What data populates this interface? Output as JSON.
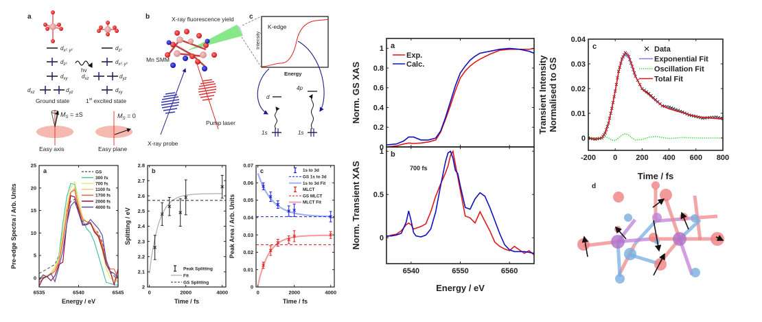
{
  "schematic": {
    "panel_a": {
      "label": "a",
      "ground_state_levels": [
        "d_{x2-y2}",
        "d_{z2}",
        "d_{xy}",
        "d_{xz}",
        "d_{yz}"
      ],
      "excited_state_levels": [
        "d_{z2}",
        "d_{x2-y2}",
        "d_{xz}",
        "d_{yz}",
        "d_{xy}"
      ],
      "gs_top": "d",
      "hv": "hv",
      "ground_state": "Ground state",
      "excited_prefix": "1",
      "excited_sup": "st",
      "excited_state": " excited state",
      "ms_axis": "M",
      "ms_axis_rest": " = ±S",
      "ms_plane": "M",
      "ms_plane_rest": " = 0",
      "ms_sub": "S",
      "easy_axis": "Easy axis",
      "easy_plane": "Easy plane",
      "sub_x2y2": "x²₋y²",
      "sub_z2": "z²",
      "sub_xy": "xy",
      "sub_xz": "xz",
      "sub_yz": "yz",
      "d": "d"
    },
    "panel_b": {
      "label": "b",
      "fluorescence": "X-ray fluorescence yield",
      "molecule": "Mn SMM",
      "pump": "Pump laser",
      "probe": "X-ray probe"
    },
    "panel_c": {
      "label": "c",
      "kedge": "K-edge",
      "ylabel": "Intensity",
      "xlabel": "Energy",
      "level_d": "d",
      "level_4p": "4p",
      "core1": "1s",
      "core2": "1s"
    }
  },
  "chart_data": [
    {
      "id": "pre-edge",
      "panel": "a",
      "type": "line",
      "xlabel": "Energy / eV",
      "ylabel": "Pre-edge Spectra / Arb. Units",
      "xlim": [
        6535,
        6545
      ],
      "ylim": [
        -2,
        25
      ],
      "xticks": [
        6535,
        6540,
        6545
      ],
      "yticks": [
        0,
        5,
        10,
        15,
        20,
        25
      ],
      "legend": "top-right",
      "x": [
        6535,
        6535.5,
        6536,
        6536.5,
        6537,
        6537.5,
        6538,
        6538.5,
        6539,
        6539.5,
        6540,
        6540.5,
        6541,
        6541.5,
        6542,
        6542.5,
        6543,
        6543.5,
        6544,
        6544.5,
        6545
      ],
      "series": [
        {
          "name": "GS",
          "color": "#666666",
          "dash": true,
          "values": [
            1,
            1.5,
            2,
            2.5,
            3,
            5,
            10,
            15,
            17,
            17.5,
            14.5,
            12.5,
            12,
            12,
            11,
            10,
            8,
            4,
            1.5,
            0.5,
            -1
          ]
        },
        {
          "name": "300 fs",
          "color": "#4dbf9a",
          "values": [
            -0.5,
            0.2,
            0.5,
            1,
            2,
            5,
            12,
            18,
            21,
            20.8,
            16,
            13,
            11,
            10,
            8,
            5,
            2,
            -1,
            -1.2,
            -1.5,
            -1.6
          ]
        },
        {
          "name": "700 fs",
          "color": "#d8ec7a",
          "values": [
            0,
            0.3,
            0.5,
            1.2,
            2.5,
            4.5,
            10,
            16,
            20,
            21.4,
            17.5,
            13.5,
            12.5,
            12.2,
            11,
            9,
            6,
            2,
            0,
            -0.5,
            -1
          ]
        },
        {
          "name": "1100 fs",
          "color": "#f7c96a",
          "values": [
            -0.3,
            0.5,
            0.6,
            1,
            2,
            4,
            9,
            15.5,
            19,
            20,
            16.5,
            13.5,
            12.5,
            12.3,
            11,
            9.5,
            7,
            3,
            1,
            0,
            -0.8
          ]
        },
        {
          "name": "1700 fs",
          "color": "#f06030",
          "values": [
            -1,
            -0.2,
            0.4,
            0.8,
            1.5,
            3.5,
            8,
            14,
            19,
            19.6,
            15.5,
            13,
            12.5,
            12.3,
            10.5,
            9.5,
            7.5,
            3.5,
            2,
            2,
            0
          ]
        },
        {
          "name": "2000 fs",
          "color": "#9b1040",
          "values": [
            -1.8,
            0,
            0.3,
            -0.6,
            0.5,
            3,
            3.5,
            12,
            18.3,
            18,
            15,
            12,
            11.8,
            12.3,
            10.2,
            9.2,
            6.5,
            3,
            1.5,
            -1.5,
            2
          ]
        },
        {
          "name": "4000 fs",
          "color": "#5a4aa8",
          "values": [
            -0.5,
            0.7,
            0.2,
            1,
            -0.8,
            2.5,
            6,
            12,
            16,
            17,
            14.5,
            11.7,
            11.8,
            13,
            12,
            11,
            9.5,
            4,
            1.5,
            1,
            0
          ]
        }
      ]
    },
    {
      "id": "splitting",
      "panel": "b",
      "type": "scatter",
      "xlabel": "Time / fs",
      "ylabel": "Splitting / eV",
      "xlim": [
        -100,
        4200
      ],
      "ylim": [
        2.0,
        2.8
      ],
      "xticks": [
        0,
        2000,
        4000
      ],
      "yticks": [
        2,
        2.1,
        2.2,
        2.3,
        2.4,
        2.5,
        2.6,
        2.7,
        2.8
      ],
      "legend": "bottom-right",
      "points": {
        "name": "Peak Splitting",
        "x": [
          300,
          700,
          1100,
          1700,
          2000,
          4000
        ],
        "y": [
          2.26,
          2.48,
          2.53,
          2.49,
          2.59,
          2.66
        ],
        "err": [
          0.08,
          0.075,
          0.06,
          0.09,
          0.115,
          0.075
        ]
      },
      "fit": {
        "name": "Fit",
        "color": "#aaaaaa",
        "model": "2.615 - 0.525*exp(-t/520)"
      },
      "reference": {
        "name": "GS Splitting",
        "value": 2.57
      }
    },
    {
      "id": "peak-area",
      "panel": "c",
      "type": "scatter",
      "xlabel": "Time / fs",
      "ylabel": "Peak Area / Arb. Units",
      "xlim": [
        -100,
        4200
      ],
      "ylim": [
        0,
        0.07
      ],
      "xticks": [
        0,
        2000,
        4000
      ],
      "yticks": [
        0,
        0.01,
        0.02,
        0.03,
        0.04,
        0.05,
        0.06,
        0.07
      ],
      "legend": "top-right",
      "series": [
        {
          "name": "1s to 3d",
          "color": "#1a1adc",
          "x": [
            300,
            700,
            1100,
            1700,
            2000,
            4000
          ],
          "y": [
            0.058,
            0.052,
            0.0475,
            0.0437,
            0.0442,
            0.0405
          ],
          "err": [
            0.002,
            0.0027,
            0.0022,
            0.003,
            0.0036,
            0.003
          ]
        },
        {
          "name": "MLCT",
          "color": "#e02020",
          "x": [
            300,
            700,
            1100,
            1700,
            2000,
            4000
          ],
          "y": [
            0.0125,
            0.021,
            0.0255,
            0.0272,
            0.0293,
            0.03
          ],
          "err": [
            0.0018,
            0.0028,
            0.002,
            0.0022,
            0.0032,
            0.002
          ]
        }
      ],
      "fits": [
        {
          "name": "1s to 3d Fit",
          "color": "#9db0f0",
          "model": "0.0405 + 0.025*exp(-t/800)"
        },
        {
          "name": "MLCT Fit",
          "color": "#f4a0a0",
          "model": "0.0298 - 0.029*exp(-t/600)"
        }
      ],
      "references": [
        {
          "name": "GS 1s to 3d",
          "value": 0.0405,
          "color": "#1a1adc"
        },
        {
          "name": "GS MLCT",
          "value": 0.0243,
          "color": "#e02020"
        }
      ]
    },
    {
      "id": "gs-xas",
      "panel": "a",
      "type": "line",
      "ylabel": "Norm. GS XAS",
      "xlim": [
        6535,
        6565
      ],
      "ylim": [
        0,
        1.1
      ],
      "yticks": [
        0,
        0.2,
        0.4,
        0.6,
        0.8,
        1
      ],
      "legend": "top-left",
      "x": [
        6535,
        6537,
        6538.5,
        6539.5,
        6540.5,
        6542,
        6543.5,
        6545,
        6546,
        6547,
        6548,
        6549,
        6550,
        6551,
        6552,
        6553,
        6554,
        6556,
        6558,
        6560,
        6562,
        6564,
        6565
      ],
      "series": [
        {
          "name": "Exp.",
          "color": "#e01818",
          "values": [
            0.0,
            0.01,
            0.03,
            0.04,
            0.035,
            0.04,
            0.05,
            0.07,
            0.15,
            0.28,
            0.42,
            0.57,
            0.7,
            0.77,
            0.82,
            0.86,
            0.89,
            0.94,
            0.98,
            0.99,
            0.99,
            0.99,
            1.0
          ]
        },
        {
          "name": "Calc.",
          "color": "#1010c0",
          "values": [
            0.02,
            0.03,
            0.06,
            0.1,
            0.1,
            0.07,
            0.07,
            0.09,
            0.16,
            0.3,
            0.46,
            0.62,
            0.75,
            0.82,
            0.88,
            0.92,
            0.95,
            0.97,
            0.99,
            1.0,
            0.99,
            0.97,
            0.95
          ]
        }
      ]
    },
    {
      "id": "transient-xas",
      "panel": "b",
      "type": "line",
      "ylabel": "Norm. Transient XAS",
      "xlabel": "Energy / eV",
      "annotation": "700 fs",
      "xlim": [
        6535,
        6565
      ],
      "ylim": [
        -0.3,
        1.05
      ],
      "xticks": [
        6540,
        6550,
        6560
      ],
      "yticks": [
        0,
        0.5,
        1
      ],
      "x": [
        6535,
        6536,
        6537,
        6538,
        6539,
        6539.5,
        6540,
        6540.5,
        6541,
        6542,
        6543,
        6544,
        6545,
        6546,
        6547,
        6547.5,
        6548,
        6548.5,
        6549,
        6549.5,
        6550,
        6551,
        6552,
        6553,
        6554,
        6555,
        6556,
        6557,
        6558,
        6559,
        6560,
        6561,
        6562,
        6563,
        6564,
        6565
      ],
      "series": [
        {
          "name": "Exp.",
          "color": "#e01818",
          "values": [
            0.01,
            0.03,
            0.04,
            0.08,
            0.15,
            0.17,
            0.15,
            0.1,
            0.11,
            0.13,
            0.16,
            0.3,
            0.48,
            0.62,
            0.75,
            0.83,
            0.95,
            1.0,
            0.85,
            0.7,
            0.55,
            0.25,
            0.23,
            0.17,
            0.3,
            0.19,
            0.08,
            -0.05,
            -0.1,
            -0.13,
            -0.15,
            -0.1,
            -0.14,
            -0.18,
            -0.15,
            -0.2
          ]
        },
        {
          "name": "Calc.",
          "color": "#1010c0",
          "values": [
            0.02,
            0.02,
            0.03,
            0.05,
            0.18,
            0.31,
            0.2,
            0.06,
            0.02,
            0.01,
            0.03,
            0.1,
            0.3,
            0.6,
            0.88,
            0.98,
            1.0,
            0.92,
            0.78,
            0.74,
            0.6,
            0.35,
            0.33,
            0.45,
            0.52,
            0.48,
            0.35,
            0.2,
            0.05,
            -0.08,
            -0.14,
            -0.16,
            -0.16,
            -0.16,
            -0.17,
            -0.18
          ]
        }
      ]
    },
    {
      "id": "kinetics",
      "panel": "c",
      "type": "line",
      "xlabel": "Time / fs",
      "ylabel": "Transient Intensity Normalised to GS",
      "xlim": [
        -200,
        800
      ],
      "ylim": [
        -0.005,
        0.04
      ],
      "xticks": [
        -200,
        0,
        200,
        400,
        600,
        800
      ],
      "yticks": [
        0,
        0.01,
        0.02,
        0.03,
        0.04
      ],
      "legend": "top-right",
      "x": [
        -200,
        -150,
        -100,
        -75,
        -50,
        -25,
        0,
        25,
        50,
        75,
        100,
        125,
        150,
        200,
        250,
        300,
        350,
        400,
        450,
        500,
        550,
        600,
        650,
        700,
        750,
        800
      ],
      "series": [
        {
          "name": "Data",
          "marker": "x",
          "color": "#111111",
          "values": [
            0.0,
            -0.0005,
            0.0,
            0.002,
            0.006,
            0.012,
            0.019,
            0.027,
            0.032,
            0.0345,
            0.033,
            0.029,
            0.025,
            0.02,
            0.018,
            0.0155,
            0.013,
            0.0125,
            0.0115,
            0.0105,
            0.0093,
            0.0087,
            0.008,
            0.0083,
            0.0085,
            0.0078
          ]
        },
        {
          "name": "Exponential Fit",
          "color": "#7f7fef",
          "values": [
            0.0,
            -0.0003,
            0.0,
            0.002,
            0.006,
            0.012,
            0.019,
            0.0265,
            0.0318,
            0.034,
            0.0325,
            0.029,
            0.025,
            0.0198,
            0.0175,
            0.015,
            0.013,
            0.012,
            0.011,
            0.0102,
            0.0094,
            0.0088,
            0.0084,
            0.0081,
            0.0079,
            0.0077
          ]
        },
        {
          "name": "Oscillation Fit",
          "color": "#44dd44",
          "dotted": true,
          "values": [
            0.0,
            0.0,
            0.0,
            0.0005,
            0.0,
            -0.0008,
            -0.001,
            0.0,
            0.0012,
            0.0017,
            0.0012,
            0.0,
            -0.0008,
            -0.0006,
            0.0003,
            0.0006,
            0.0002,
            -0.0002,
            0.0,
            0.0002,
            0.0001,
            0.0,
            0.0,
            0.0,
            0.0,
            0.0
          ]
        },
        {
          "name": "Total Fit",
          "color": "#e01818",
          "values": [
            0.0,
            -0.0004,
            0.0,
            0.002,
            0.006,
            0.012,
            0.019,
            0.0268,
            0.032,
            0.0345,
            0.0332,
            0.0295,
            0.025,
            0.0197,
            0.0176,
            0.0153,
            0.013,
            0.0118,
            0.011,
            0.0103,
            0.0094,
            0.0088,
            0.0084,
            0.0081,
            0.0079,
            0.0077
          ]
        }
      ]
    }
  ],
  "structure": {
    "label": "d"
  }
}
